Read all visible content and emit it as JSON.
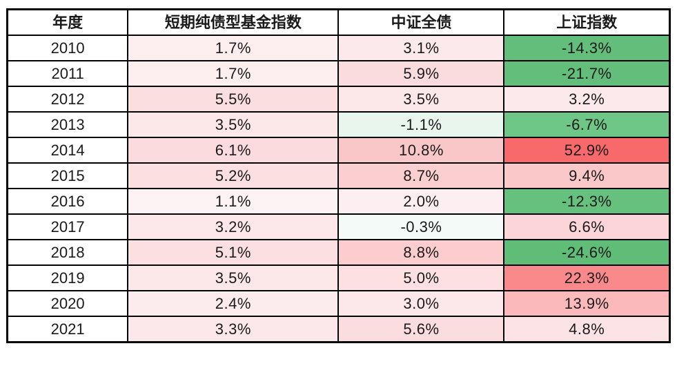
{
  "table": {
    "headers": [
      "年度",
      "短期纯债型基金指数",
      "中证全债",
      "上证指数"
    ],
    "rows": [
      {
        "year": "2010",
        "cells": [
          {
            "text": "1.7%",
            "bg": "#FDEEF0"
          },
          {
            "text": "3.1%",
            "bg": "#FCE9EB"
          },
          {
            "text": "-14.3%",
            "bg": "#63BE7B"
          }
        ]
      },
      {
        "year": "2011",
        "cells": [
          {
            "text": "1.7%",
            "bg": "#FDEEF0"
          },
          {
            "text": "5.9%",
            "bg": "#FBDCDE"
          },
          {
            "text": "-21.7%",
            "bg": "#62BE7A"
          }
        ]
      },
      {
        "year": "2012",
        "cells": [
          {
            "text": "5.5%",
            "bg": "#FBDEE0"
          },
          {
            "text": "3.5%",
            "bg": "#FCE7E9"
          },
          {
            "text": "3.2%",
            "bg": "#FCE9EB"
          }
        ]
      },
      {
        "year": "2013",
        "cells": [
          {
            "text": "3.5%",
            "bg": "#FCE7E9"
          },
          {
            "text": "-1.1%",
            "bg": "#E8F6EE"
          },
          {
            "text": "-6.7%",
            "bg": "#6EC687"
          }
        ]
      },
      {
        "year": "2014",
        "cells": [
          {
            "text": "6.1%",
            "bg": "#FBDBDD"
          },
          {
            "text": "10.8%",
            "bg": "#FAC7C9"
          },
          {
            "text": "52.9%",
            "bg": "#F8696B"
          }
        ]
      },
      {
        "year": "2015",
        "cells": [
          {
            "text": "5.2%",
            "bg": "#FBDFE1"
          },
          {
            "text": "8.7%",
            "bg": "#FBCED0"
          },
          {
            "text": "9.4%",
            "bg": "#FBC8CA"
          }
        ]
      },
      {
        "year": "2016",
        "cells": [
          {
            "text": "1.1%",
            "bg": "#FDF2F4"
          },
          {
            "text": "2.0%",
            "bg": "#FDEFF1"
          },
          {
            "text": "-12.3%",
            "bg": "#66C07E"
          }
        ]
      },
      {
        "year": "2017",
        "cells": [
          {
            "text": "3.2%",
            "bg": "#FCE8EA"
          },
          {
            "text": "-0.3%",
            "bg": "#F4FAF7"
          },
          {
            "text": "6.6%",
            "bg": "#FBD5D7"
          }
        ]
      },
      {
        "year": "2018",
        "cells": [
          {
            "text": "5.1%",
            "bg": "#FBDFE1"
          },
          {
            "text": "8.8%",
            "bg": "#FBCDCF"
          },
          {
            "text": "-24.6%",
            "bg": "#5FBD78"
          }
        ]
      },
      {
        "year": "2019",
        "cells": [
          {
            "text": "3.5%",
            "bg": "#FCE7E9"
          },
          {
            "text": "5.0%",
            "bg": "#FCE0E2"
          },
          {
            "text": "22.3%",
            "bg": "#F9898B"
          }
        ]
      },
      {
        "year": "2020",
        "cells": [
          {
            "text": "2.4%",
            "bg": "#FCECEE"
          },
          {
            "text": "3.0%",
            "bg": "#FCE8EA"
          },
          {
            "text": "13.9%",
            "bg": "#FBB9BB"
          }
        ]
      },
      {
        "year": "2021",
        "cells": [
          {
            "text": "3.3%",
            "bg": "#FCE8EA"
          },
          {
            "text": "5.6%",
            "bg": "#FBDDDF"
          },
          {
            "text": "4.8%",
            "bg": "#FCE4E6"
          }
        ]
      }
    ]
  },
  "chart_data": {
    "type": "table",
    "title": "",
    "categories": [
      "2010",
      "2011",
      "2012",
      "2013",
      "2014",
      "2015",
      "2016",
      "2017",
      "2018",
      "2019",
      "2020",
      "2021"
    ],
    "series": [
      {
        "name": "短期纯债型基金指数",
        "unit": "%",
        "values": [
          1.7,
          1.7,
          5.5,
          3.5,
          6.1,
          5.2,
          1.1,
          3.2,
          5.1,
          3.5,
          2.4,
          3.3
        ]
      },
      {
        "name": "中证全债",
        "unit": "%",
        "values": [
          3.1,
          5.9,
          3.5,
          -1.1,
          10.8,
          8.7,
          2.0,
          -0.3,
          8.8,
          5.0,
          3.0,
          5.6
        ]
      },
      {
        "name": "上证指数",
        "unit": "%",
        "values": [
          -14.3,
          -21.7,
          3.2,
          -6.7,
          52.9,
          9.4,
          -12.3,
          6.6,
          -24.6,
          22.3,
          13.9,
          4.8
        ]
      }
    ],
    "layout_hints": {
      "first_column_label": "年度",
      "heatmap": true,
      "heatmap_scale": {
        "negative_min": "#63BE7B",
        "neutral": "#FCFCFF",
        "positive_max": "#F8696B"
      },
      "grid": "black solid borders, white page background"
    }
  }
}
